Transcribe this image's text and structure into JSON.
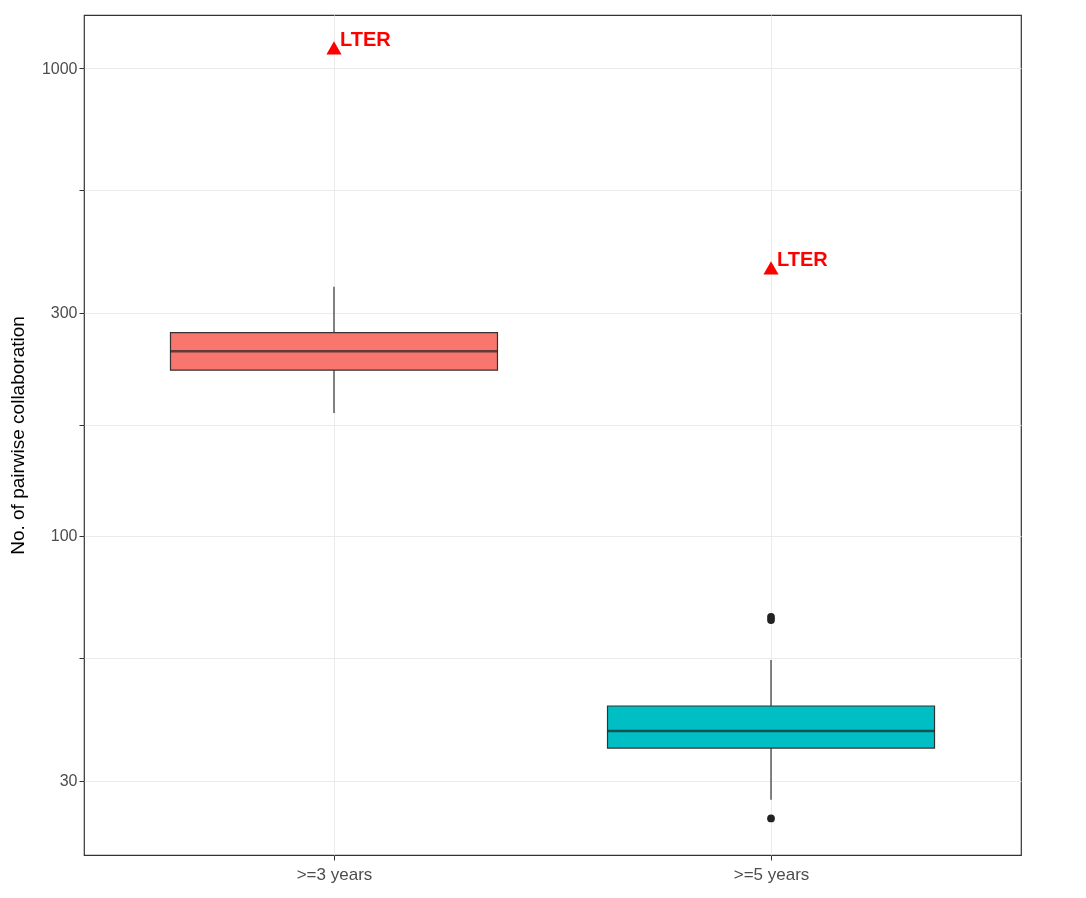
{
  "chart_data": {
    "type": "box",
    "ylabel": "No. of pairwise collaboration",
    "categories": [
      ">=3 years",
      ">=5 years"
    ],
    "log": "y",
    "ylim": [
      20.8,
      1298
    ],
    "yticks": [
      30,
      {
        "value": 54.8,
        "label": null
      },
      100,
      {
        "value": 173,
        "label": null
      },
      300,
      {
        "value": 548,
        "label": null
      },
      1000
    ],
    "grid": true,
    "series": [
      {
        "colors": [
          "#f8766d",
          "#00bfc4"
        ],
        "boxes": [
          {
            "low": 183,
            "q1": 226,
            "median": 248,
            "q3": 272,
            "high": 341
          },
          {
            "low": 27.3,
            "q1": 35.2,
            "median": 38.3,
            "q3": 43.3,
            "high": 54.3,
            "outliers": [
              67.1,
              66.1,
              24.9
            ]
          }
        ]
      },
      {
        "type": "scatter",
        "name": "LTER",
        "color": "#ff0000",
        "marker": "triangle",
        "x": [
          ">=3 years",
          ">=5 years"
        ],
        "values": [
          1104,
          374
        ]
      }
    ]
  }
}
